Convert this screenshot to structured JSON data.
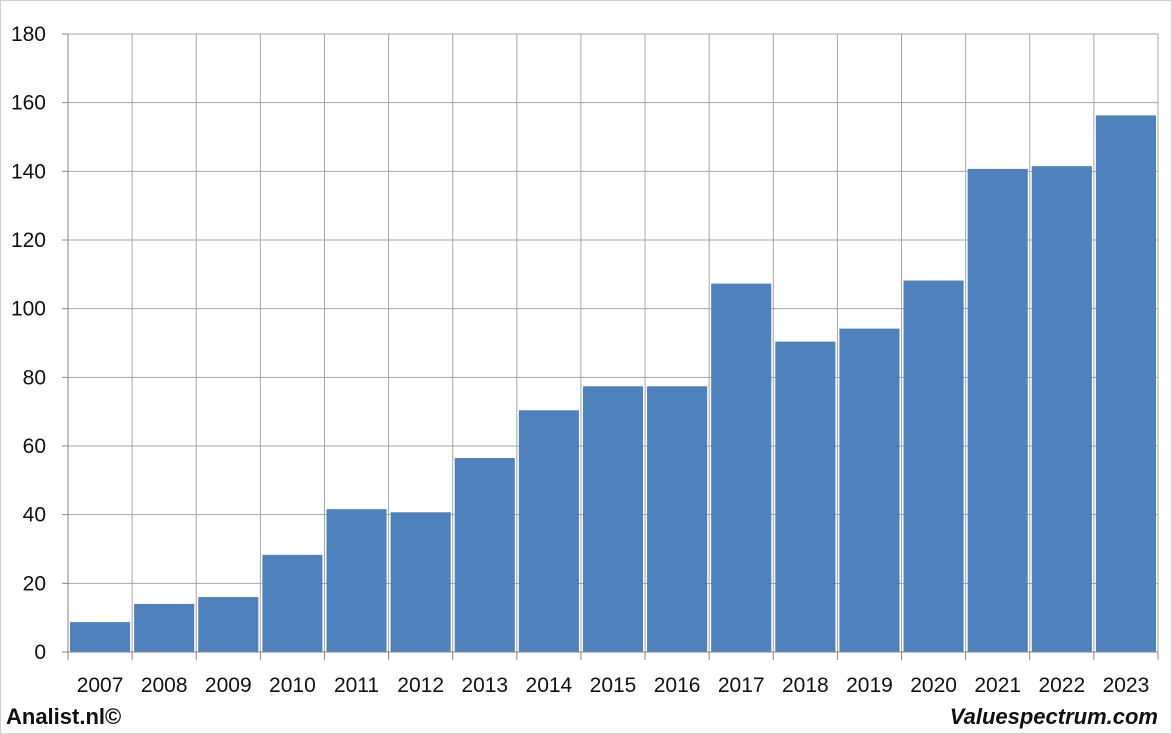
{
  "chart_data": {
    "type": "bar",
    "categories": [
      "2007",
      "2008",
      "2009",
      "2010",
      "2011",
      "2012",
      "2013",
      "2014",
      "2015",
      "2016",
      "2017",
      "2018",
      "2019",
      "2020",
      "2021",
      "2022",
      "2023"
    ],
    "values": [
      8.7,
      14.0,
      16.0,
      28.3,
      41.6,
      40.7,
      56.5,
      70.4,
      77.4,
      77.4,
      107.3,
      90.4,
      94.2,
      108.2,
      140.7,
      141.5,
      156.3
    ],
    "ylim": [
      0,
      180
    ],
    "yticks": [
      0,
      20,
      40,
      60,
      80,
      100,
      120,
      140,
      160,
      180
    ],
    "title": "",
    "xlabel": "",
    "ylabel": "",
    "grid": true,
    "bar_color": "#4f81bd",
    "grid_color": "#a6a6a6"
  },
  "footer": {
    "left": "Analist.nl©",
    "right": "Valuespectrum.com"
  }
}
